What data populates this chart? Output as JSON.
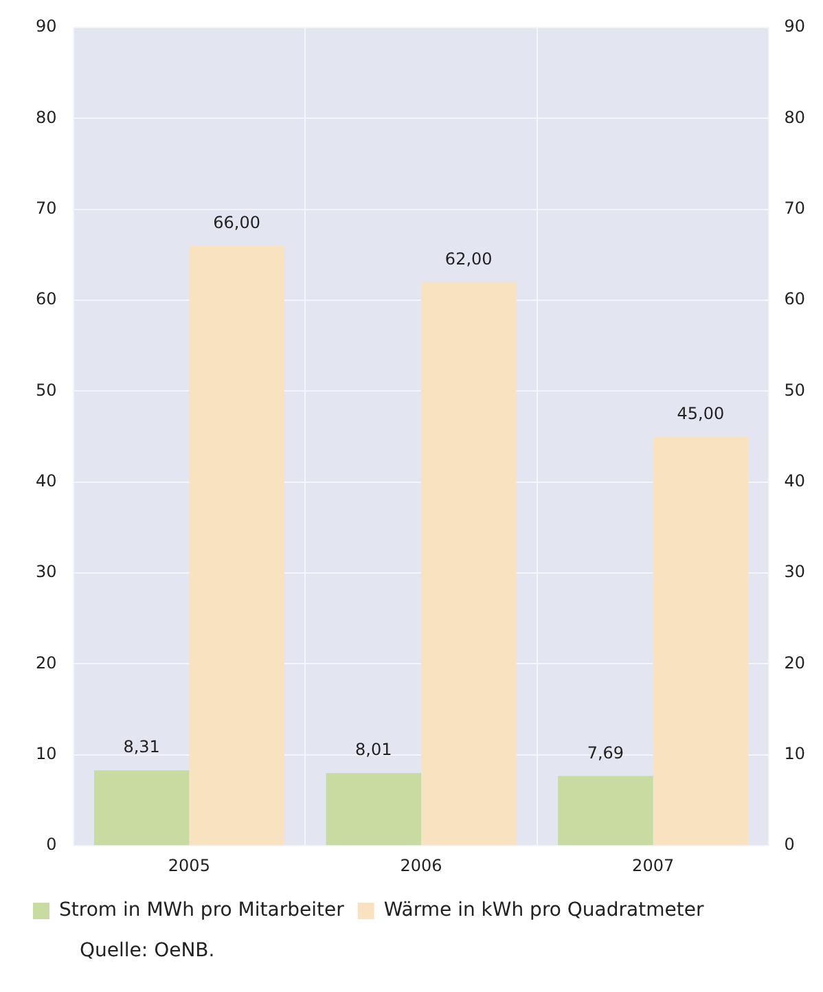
{
  "chart_data": {
    "type": "bar",
    "categories": [
      "2005",
      "2006",
      "2007"
    ],
    "series": [
      {
        "name": "Strom in MWh pro Mitarbeiter",
        "color": "#c8dba0",
        "values": [
          8.31,
          8.01,
          7.69
        ],
        "value_labels": [
          "8,31",
          "8,01",
          "7,69"
        ]
      },
      {
        "name": "Wärme in kWh pro Quadratmeter",
        "color": "#f8e2bf",
        "values": [
          66,
          62,
          45
        ],
        "value_labels": [
          "66,00",
          "62,00",
          "45,00"
        ]
      }
    ],
    "ylim": [
      0,
      90
    ],
    "yticks": [
      0,
      10,
      20,
      30,
      40,
      50,
      60,
      70,
      80,
      90
    ],
    "y2lim": [
      0,
      90
    ],
    "y2ticks": [
      0,
      10,
      20,
      30,
      40,
      50,
      60,
      70,
      80,
      90
    ],
    "grid": true,
    "legend": "bottom",
    "annotations": [
      "Quelle: OeNB."
    ]
  }
}
